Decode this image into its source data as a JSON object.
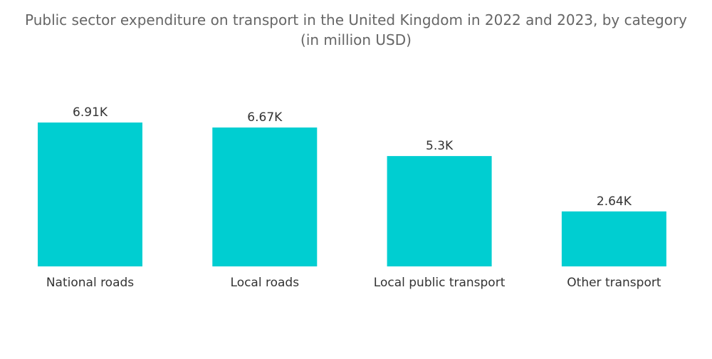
{
  "chart_data": {
    "type": "bar",
    "title": "Public sector expenditure on transport in the United Kingdom in 2022 and 2023, by category",
    "subtitle": "(in million USD)",
    "categories": [
      "National roads",
      "Local roads",
      "Local public transport",
      "Other transport"
    ],
    "values": [
      6910,
      6670,
      5300,
      2640
    ],
    "value_labels": [
      "6.91K",
      "6.67K",
      "5.3K",
      "2.64K"
    ],
    "ylim": [
      0,
      6910
    ],
    "grid": false,
    "legend": "none",
    "bar_color": "#00CED1"
  }
}
